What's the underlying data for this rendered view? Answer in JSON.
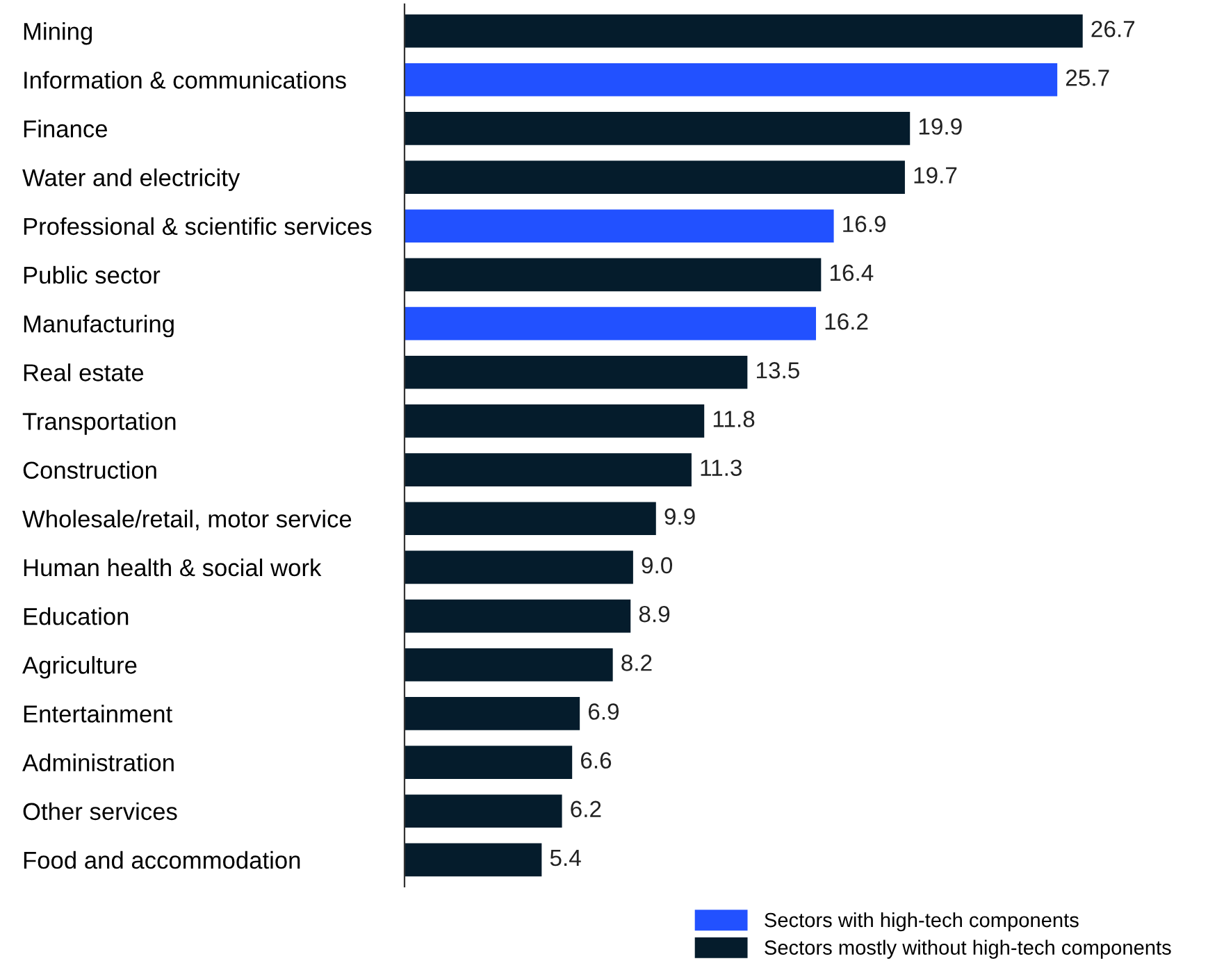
{
  "chart_data": {
    "type": "bar",
    "orientation": "horizontal",
    "legend": "bottom right",
    "grid": false,
    "tick_labels": "y",
    "categories": [
      "Mining",
      "Information & communications",
      "Finance",
      "Water and electricity",
      "Professional & scientific services",
      "Public sector",
      "Manufacturing",
      "Real estate",
      "Transportation",
      "Construction",
      "Wholesale/retail, motor service",
      "Human health & social work",
      "Education",
      "Agriculture",
      "Entertainment",
      "Administration",
      "Other services",
      "Food and accommodation"
    ],
    "series": [
      {
        "name": "Sectors with high-tech components",
        "color": "#2251ff",
        "values": [
          null,
          25.7,
          null,
          null,
          16.9,
          null,
          16.2,
          null,
          null,
          null,
          null,
          null,
          null,
          null,
          null,
          null,
          null,
          null
        ],
        "value_labels": [
          null,
          "25.7",
          null,
          null,
          "16.9",
          null,
          "16.2",
          null,
          null,
          null,
          null,
          null,
          null,
          null,
          null,
          null,
          null,
          null
        ]
      },
      {
        "name": "Sectors mostly without high-tech components",
        "color": "#051c2c",
        "values": [
          26.7,
          null,
          19.9,
          19.7,
          null,
          16.4,
          null,
          13.5,
          11.8,
          11.3,
          9.9,
          9.0,
          8.9,
          8.2,
          6.9,
          6.6,
          6.2,
          5.4
        ],
        "value_labels": [
          "26.7",
          null,
          "19.9",
          "19.7",
          null,
          "16.4",
          null,
          "13.5",
          "11.8",
          "11.3",
          "9.9",
          "9.0",
          "8.9",
          "8.2",
          "6.9",
          "6.6",
          "6.2",
          "5.4"
        ]
      }
    ]
  }
}
